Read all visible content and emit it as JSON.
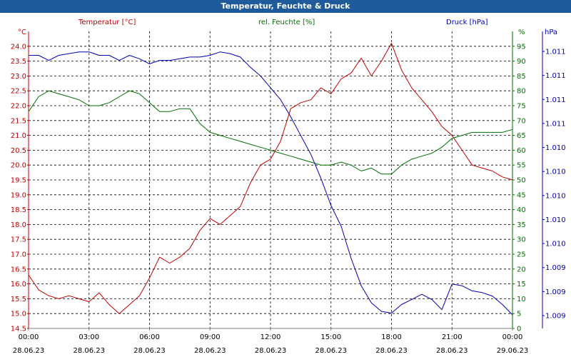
{
  "window": {
    "title": "Temperatur, Feuchte & Druck"
  },
  "colors": {
    "temperature": "#c00000",
    "humidity": "#007000",
    "pressure": "#0000b0",
    "titlebar": "#1f5a9a",
    "grid": "#000000",
    "axis": "#808080"
  },
  "chart_data": {
    "type": "line",
    "title": "Temperatur, Feuchte & Druck",
    "grid": true,
    "x_ticks": [
      {
        "time": "00:00",
        "date": "28.06.23"
      },
      {
        "time": "03:00",
        "date": "28.06.23"
      },
      {
        "time": "06:00",
        "date": "28.06.23"
      },
      {
        "time": "09:00",
        "date": "28.06.23"
      },
      {
        "time": "12:00",
        "date": "28.06.23"
      },
      {
        "time": "15:00",
        "date": "28.06.23"
      },
      {
        "time": "18:00",
        "date": "28.06.23"
      },
      {
        "time": "21:00",
        "date": "28.06.23"
      },
      {
        "time": "00:00",
        "date": "29.06.23"
      }
    ],
    "axes": {
      "temperature": {
        "label": "Temperatur [°C]",
        "unit": "°C",
        "range": [
          14.5,
          24.5
        ],
        "ticks": [
          "24.0",
          "23.5",
          "23.0",
          "22.5",
          "22.0",
          "21.5",
          "21.0",
          "20.5",
          "20.0",
          "19.5",
          "19.0",
          "18.5",
          "18.0",
          "17.5",
          "17.0",
          "16.5",
          "16.0",
          "15.5",
          "15.0",
          "14.5"
        ]
      },
      "humidity": {
        "label": "rel. Feuchte [%]",
        "unit": "%",
        "range": [
          0,
          100
        ],
        "ticks": [
          "95",
          "90",
          "85",
          "80",
          "75",
          "70",
          "65",
          "60",
          "55",
          "50",
          "45",
          "40",
          "35",
          "30",
          "25",
          "20",
          "15",
          "10",
          "5",
          "0"
        ]
      },
      "pressure": {
        "label": "Druck [hPa]",
        "unit": "hPa",
        "ticks": [
          "1.011",
          "1.011",
          "1.011",
          "1.011",
          "1.010",
          "1.010",
          "1.010",
          "1.010",
          "1.010",
          "1.009",
          "1.009",
          "1.009"
        ]
      }
    },
    "series": [
      {
        "name": "Temperatur [°C]",
        "axis": "temperature",
        "x_hours": [
          0,
          0.5,
          1,
          1.5,
          2,
          2.5,
          3,
          3.5,
          4,
          4.5,
          5,
          5.5,
          6,
          6.5,
          7,
          7.5,
          8,
          8.5,
          9,
          9.5,
          10,
          10.5,
          11,
          11.5,
          12,
          12.5,
          13,
          13.5,
          14,
          14.5,
          15,
          15.5,
          16,
          16.5,
          17,
          17.5,
          18,
          18.5,
          19,
          19.5,
          20,
          20.5,
          21,
          21.5,
          22,
          22.5,
          23,
          23.5,
          24
        ],
        "values": [
          16.3,
          15.8,
          15.6,
          15.5,
          15.6,
          15.5,
          15.4,
          15.7,
          15.3,
          15.0,
          15.3,
          15.6,
          16.2,
          16.9,
          16.7,
          16.9,
          17.2,
          17.8,
          18.2,
          18.0,
          18.3,
          18.6,
          19.4,
          20.0,
          20.2,
          20.8,
          21.9,
          22.1,
          22.2,
          22.6,
          22.4,
          22.9,
          23.1,
          23.6,
          23.0,
          23.5,
          24.1,
          23.2,
          22.6,
          22.2,
          21.8,
          21.3,
          21.0,
          20.5,
          20.0,
          19.9,
          19.8,
          19.6,
          19.5
        ]
      },
      {
        "name": "rel. Feuchte [%]",
        "axis": "humidity",
        "x_hours": [
          0,
          0.5,
          1,
          1.5,
          2,
          2.5,
          3,
          3.5,
          4,
          4.5,
          5,
          5.5,
          6,
          6.5,
          7,
          7.5,
          8,
          8.5,
          9,
          9.5,
          10,
          10.5,
          11,
          11.5,
          12,
          12.5,
          13,
          13.5,
          14,
          14.5,
          15,
          15.5,
          16,
          16.5,
          17,
          17.5,
          18,
          18.5,
          19,
          19.5,
          20,
          20.5,
          21,
          21.5,
          22,
          22.5,
          23,
          23.5,
          24
        ],
        "values": [
          73,
          78,
          80,
          79,
          78,
          77,
          75,
          75,
          76,
          78,
          80,
          79,
          76,
          73,
          73,
          74,
          74,
          69,
          66,
          65,
          64,
          63,
          62,
          61,
          60,
          59,
          58,
          57,
          56,
          55,
          55,
          56,
          55,
          53,
          54,
          52,
          52,
          55,
          57,
          58,
          59,
          61,
          64,
          65,
          66,
          66,
          66,
          66,
          67
        ]
      },
      {
        "name": "Druck [hPa]",
        "axis": "pressure",
        "x_hours": [
          0,
          0.5,
          1,
          1.5,
          2,
          2.5,
          3,
          3.5,
          4,
          4.5,
          5,
          5.5,
          6,
          6.5,
          7,
          7.5,
          8,
          8.5,
          9,
          9.5,
          10,
          10.5,
          11,
          11.5,
          12,
          12.5,
          13,
          13.5,
          14,
          14.5,
          15,
          15.5,
          16,
          16.5,
          17,
          17.5,
          18,
          18.5,
          19,
          19.5,
          20,
          20.5,
          21,
          21.5,
          22,
          22.5,
          23,
          23.5,
          24
        ],
        "values": [
          1.01118,
          1.01118,
          1.01115,
          1.01118,
          1.01119,
          1.0112,
          1.0112,
          1.01118,
          1.01118,
          1.01115,
          1.01118,
          1.01116,
          1.01113,
          1.01115,
          1.01115,
          1.01116,
          1.01117,
          1.01117,
          1.01118,
          1.0112,
          1.01119,
          1.01117,
          1.01111,
          1.01106,
          1.01099,
          1.01092,
          1.01082,
          1.01071,
          1.0106,
          1.01046,
          1.0103,
          1.01018,
          1.00999,
          1.00983,
          1.00973,
          1.00968,
          1.00967,
          1.00972,
          1.00975,
          1.00978,
          1.00975,
          1.00969,
          1.00984,
          1.00983,
          1.0098,
          1.00979,
          1.00977,
          1.00972,
          1.00966
        ],
        "display_range": [
          1.00958,
          1.01132
        ]
      }
    ]
  }
}
